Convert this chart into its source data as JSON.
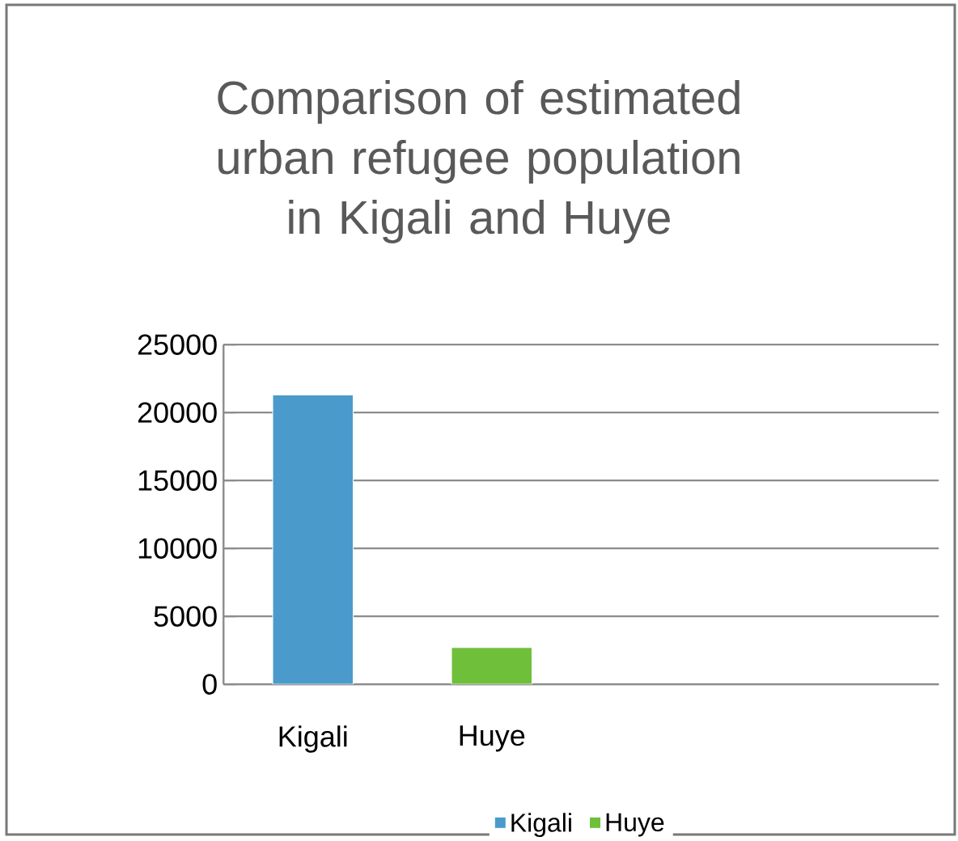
{
  "chart_data": {
    "type": "bar",
    "title": "Comparison of estimated urban refugee population in Kigali and Huye",
    "categories": [
      "Kigali",
      "Huye",
      null,
      null
    ],
    "series": [
      {
        "name": "Kigali",
        "color": "#4a9bcb",
        "values": [
          21300,
          null,
          null,
          null
        ]
      },
      {
        "name": "Huye",
        "color": "#6fbf3a",
        "values": [
          null,
          2700,
          null,
          null
        ]
      }
    ],
    "ylim": [
      0,
      25000
    ],
    "yticks": [
      0,
      5000,
      10000,
      15000,
      20000,
      25000
    ],
    "grid": "y",
    "legend": "bottom"
  }
}
